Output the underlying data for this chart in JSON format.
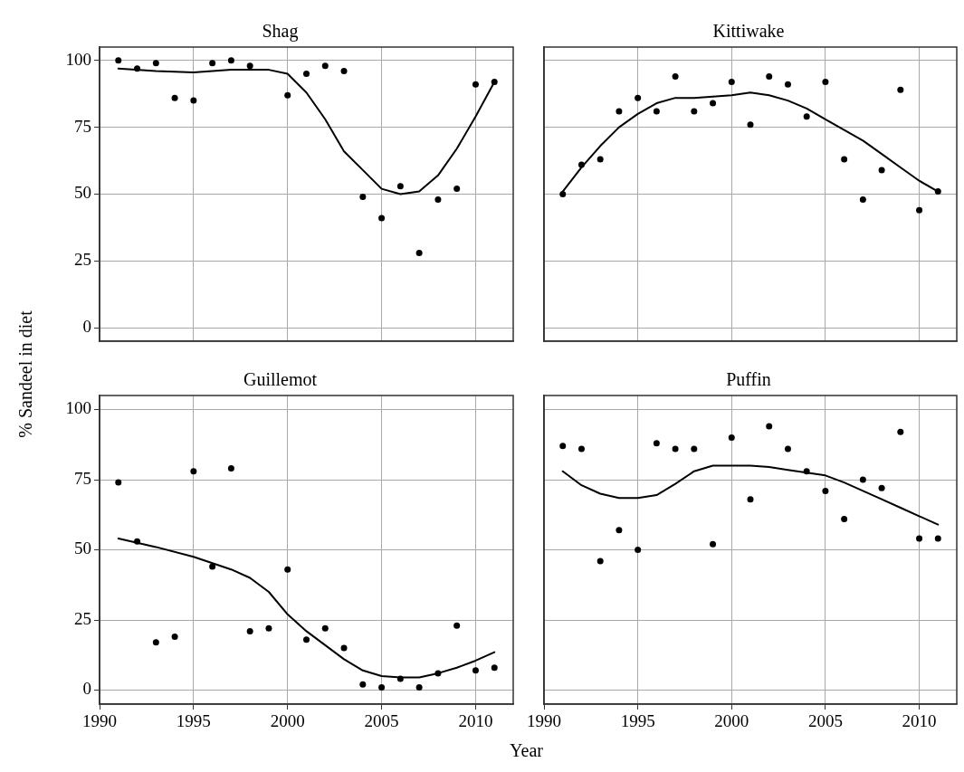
{
  "chart_data": [
    {
      "type": "scatter",
      "title": "Shag",
      "ylabel": "% Sandeel in diet",
      "xlim": [
        1990,
        2012
      ],
      "ylim": [
        -5,
        105
      ],
      "xticks": [
        1990,
        1995,
        2000,
        2005,
        2010
      ],
      "yticks": [
        0,
        25,
        50,
        75,
        100
      ],
      "grid": true,
      "tick_labels": "y",
      "series": [
        {
          "color": "#000000",
          "x": [
            1991,
            1992,
            1993,
            1994,
            1995,
            1996,
            1997,
            1998,
            2000,
            2001,
            2002,
            2003,
            2004,
            2005,
            2006,
            2007,
            2008,
            2009,
            2010,
            2011
          ],
          "values": [
            100,
            97,
            99,
            86,
            85,
            99,
            100,
            98,
            87,
            95,
            98,
            96,
            49,
            41,
            53,
            28,
            48,
            52,
            91,
            92
          ]
        },
        {
          "type": "line",
          "color": "#000000",
          "x": [
            1991,
            1993,
            1995,
            1997,
            1999,
            2000,
            2001,
            2002,
            2003,
            2004,
            2005,
            2006,
            2007,
            2008,
            2009,
            2010,
            2011
          ],
          "values": [
            97,
            96,
            95.5,
            96.5,
            96.5,
            95,
            88,
            78,
            66,
            59,
            52,
            50,
            51,
            57,
            67,
            79,
            92
          ]
        }
      ]
    },
    {
      "type": "scatter",
      "title": "Kittiwake",
      "xlim": [
        1990,
        2012
      ],
      "ylim": [
        -5,
        105
      ],
      "xticks": [
        1990,
        1995,
        2000,
        2005,
        2010
      ],
      "yticks": [
        0,
        25,
        50,
        75,
        100
      ],
      "grid": true,
      "tick_labels": false,
      "series": [
        {
          "color": "#000000",
          "x": [
            1991,
            1992,
            1993,
            1994,
            1995,
            1996,
            1997,
            1998,
            1999,
            2000,
            2001,
            2002,
            2003,
            2004,
            2005,
            2006,
            2007,
            2008,
            2009,
            2010,
            2011
          ],
          "values": [
            50,
            61,
            63,
            81,
            86,
            81,
            94,
            81,
            84,
            92,
            76,
            94,
            91,
            79,
            92,
            63,
            48,
            59,
            89,
            44,
            51
          ]
        },
        {
          "type": "line",
          "color": "#000000",
          "x": [
            1991,
            1992,
            1993,
            1994,
            1995,
            1996,
            1997,
            1998,
            1999,
            2000,
            2001,
            2002,
            2003,
            2004,
            2005,
            2006,
            2007,
            2008,
            2009,
            2010,
            2011
          ],
          "values": [
            51,
            60,
            68,
            75,
            80,
            84,
            86,
            86,
            86.5,
            87,
            88,
            87,
            85,
            82,
            78,
            74,
            70,
            65,
            60,
            55,
            51
          ]
        }
      ]
    },
    {
      "type": "scatter",
      "title": "Guillemot",
      "xlabel": "Year",
      "xlim": [
        1990,
        2012
      ],
      "ylim": [
        -5,
        105
      ],
      "xticks": [
        1990,
        1995,
        2000,
        2005,
        2010
      ],
      "yticks": [
        0,
        25,
        50,
        75,
        100
      ],
      "grid": true,
      "series": [
        {
          "color": "#000000",
          "x": [
            1991,
            1992,
            1993,
            1994,
            1995,
            1996,
            1997,
            1998,
            1999,
            2000,
            2001,
            2002,
            2003,
            2004,
            2005,
            2006,
            2007,
            2008,
            2009,
            2010,
            2011
          ],
          "values": [
            74,
            53,
            17,
            19,
            78,
            44,
            79,
            21,
            22,
            43,
            18,
            22,
            15,
            2,
            1,
            4,
            1,
            6,
            23,
            7,
            8
          ]
        },
        {
          "type": "line",
          "color": "#000000",
          "x": [
            1991,
            1993,
            1995,
            1997,
            1998,
            1999,
            2000,
            2001,
            2002,
            2003,
            2004,
            2005,
            2006,
            2007,
            2008,
            2009,
            2010,
            2011
          ],
          "values": [
            54,
            51,
            47.5,
            43,
            40,
            35,
            27,
            21,
            16,
            11,
            7,
            5,
            4.5,
            4.5,
            6,
            8,
            10.5,
            13.5
          ]
        }
      ]
    },
    {
      "type": "scatter",
      "title": "Puffin",
      "xlim": [
        1990,
        2012
      ],
      "ylim": [
        -5,
        105
      ],
      "xticks": [
        1990,
        1995,
        2000,
        2005,
        2010
      ],
      "yticks": [
        0,
        25,
        50,
        75,
        100
      ],
      "grid": true,
      "tick_labels": "x",
      "series": [
        {
          "color": "#000000",
          "x": [
            1991,
            1992,
            1993,
            1994,
            1995,
            1996,
            1997,
            1998,
            1999,
            2000,
            2001,
            2002,
            2003,
            2004,
            2005,
            2006,
            2007,
            2008,
            2009,
            2010,
            2011
          ],
          "values": [
            87,
            86,
            46,
            57,
            50,
            88,
            86,
            86,
            52,
            90,
            68,
            94,
            86,
            78,
            71,
            61,
            75,
            72,
            92,
            54,
            54
          ]
        },
        {
          "type": "line",
          "color": "#000000",
          "x": [
            1991,
            1992,
            1993,
            1994,
            1995,
            1996,
            1997,
            1998,
            1999,
            2000,
            2001,
            2002,
            2003,
            2004,
            2005,
            2006,
            2007,
            2008,
            2009,
            2010,
            2011
          ],
          "values": [
            78,
            73,
            70,
            68.5,
            68.5,
            69.5,
            73.5,
            78,
            80,
            80,
            80,
            79.5,
            78.5,
            77.5,
            76.5,
            74,
            71,
            68,
            65,
            62,
            59
          ]
        }
      ]
    }
  ]
}
